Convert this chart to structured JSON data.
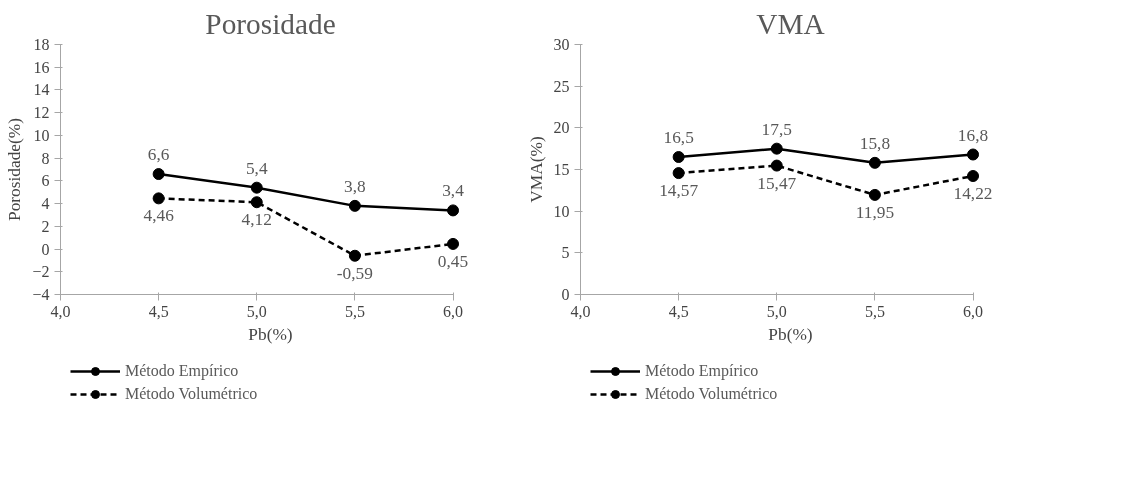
{
  "chart_data": [
    {
      "type": "line",
      "title": "Porosidade",
      "xlabel": "Pb(%)",
      "ylabel": "Porosidade(%)",
      "x": [
        4.5,
        5.0,
        5.5,
        6.0
      ],
      "series": [
        {
          "name": "Método Empírico",
          "color": "#000000",
          "line_style": "solid",
          "values": [
            6.6,
            5.4,
            3.8,
            3.4
          ],
          "value_labels": [
            "6,6",
            "5,4",
            "3,8",
            "3,4"
          ]
        },
        {
          "name": "Método Volumétrico",
          "color": "#000000",
          "line_style": "dashed",
          "values": [
            4.46,
            4.12,
            -0.59,
            0.45
          ],
          "value_labels": [
            "4,46",
            "4,12",
            "-0,59",
            "0,45"
          ]
        }
      ],
      "xlim": [
        4.0,
        6.0
      ],
      "xticks": [
        {
          "value": 4.0,
          "label": "4,0"
        },
        {
          "value": 4.5,
          "label": "4,5"
        },
        {
          "value": 5.0,
          "label": "5,0"
        },
        {
          "value": 5.5,
          "label": "5,5"
        },
        {
          "value": 6.0,
          "label": "6,0"
        }
      ],
      "ylim": [
        -4,
        18
      ],
      "yticks": [
        -4,
        -2,
        0,
        2,
        4,
        6,
        8,
        10,
        12,
        14,
        16,
        18
      ],
      "marker": "circle",
      "grid": false,
      "legend": "bottom"
    },
    {
      "type": "line",
      "title": "VMA",
      "xlabel": "Pb(%)",
      "ylabel": "VMA(%)",
      "x": [
        4.5,
        5.0,
        5.5,
        6.0
      ],
      "series": [
        {
          "name": "Método Empírico",
          "color": "#000000",
          "line_style": "solid",
          "values": [
            16.5,
            17.5,
            15.8,
            16.8
          ],
          "value_labels": [
            "16,5",
            "17,5",
            "15,8",
            "16,8"
          ]
        },
        {
          "name": "Método Volumétrico",
          "color": "#000000",
          "line_style": "dashed",
          "values": [
            14.57,
            15.47,
            11.95,
            14.22
          ],
          "value_labels": [
            "14,57",
            "15,47",
            "11,95",
            "14,22"
          ]
        }
      ],
      "xlim": [
        4.0,
        6.0
      ],
      "xticks": [
        {
          "value": 4.0,
          "label": "4,0"
        },
        {
          "value": 4.5,
          "label": "4,5"
        },
        {
          "value": 5.0,
          "label": "5,0"
        },
        {
          "value": 5.5,
          "label": "5,5"
        },
        {
          "value": 6.0,
          "label": "6,0"
        }
      ],
      "ylim": [
        0,
        30
      ],
      "yticks": [
        0,
        5,
        10,
        15,
        20,
        25,
        30
      ],
      "marker": "circle",
      "grid": false,
      "legend": "bottom"
    }
  ]
}
